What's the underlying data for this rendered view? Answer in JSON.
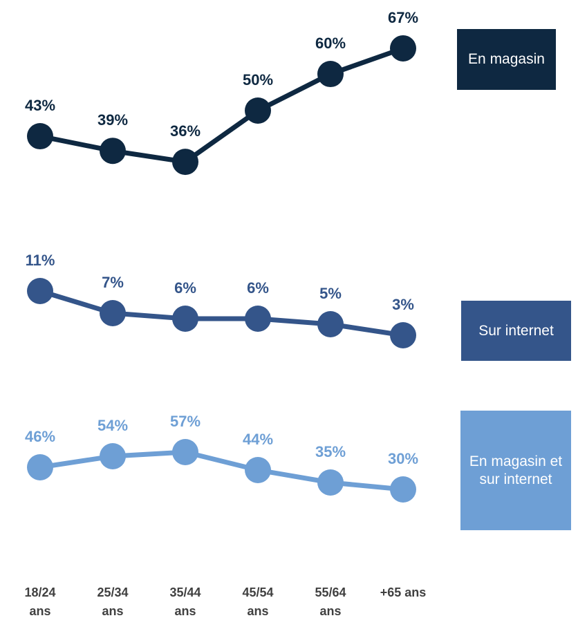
{
  "chart_data": {
    "type": "line",
    "categories": [
      "18/24 ans",
      "25/34 ans",
      "35/44 ans",
      "45/54 ans",
      "55/64 ans",
      "+65 ans"
    ],
    "series": [
      {
        "name": "En magasin",
        "color": "#0e2841",
        "values": [
          43,
          39,
          36,
          50,
          60,
          67
        ],
        "value_labels": [
          "43%",
          "39%",
          "36%",
          "50%",
          "60%",
          "67%"
        ],
        "ylim": [
          33,
          69
        ]
      },
      {
        "name": "Sur internet",
        "color": "#34558a",
        "values": [
          11,
          7,
          6,
          6,
          5,
          3
        ],
        "value_labels": [
          "11%",
          "7%",
          "6%",
          "6%",
          "5%",
          "3%"
        ],
        "ylim": [
          1,
          13
        ]
      },
      {
        "name": "En magasin et sur internet",
        "color": "#6e9fd5",
        "values": [
          46,
          54,
          57,
          44,
          35,
          30
        ],
        "value_labels": [
          "46%",
          "54%",
          "57%",
          "44%",
          "35%",
          "30%"
        ],
        "ylim": [
          25,
          60
        ]
      }
    ]
  }
}
